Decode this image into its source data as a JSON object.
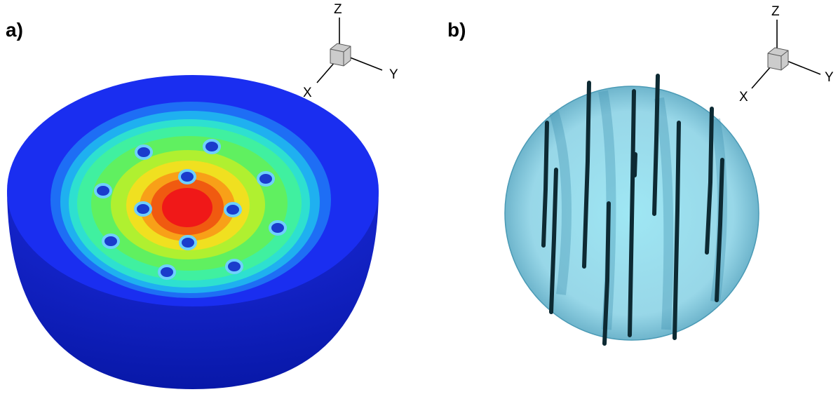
{
  "panels": [
    {
      "label": "a)",
      "axes": {
        "z": "Z",
        "y": "Y",
        "x": "X"
      }
    },
    {
      "label": "b)",
      "axes": {
        "z": "Z",
        "y": "Y",
        "x": "X"
      }
    }
  ]
}
